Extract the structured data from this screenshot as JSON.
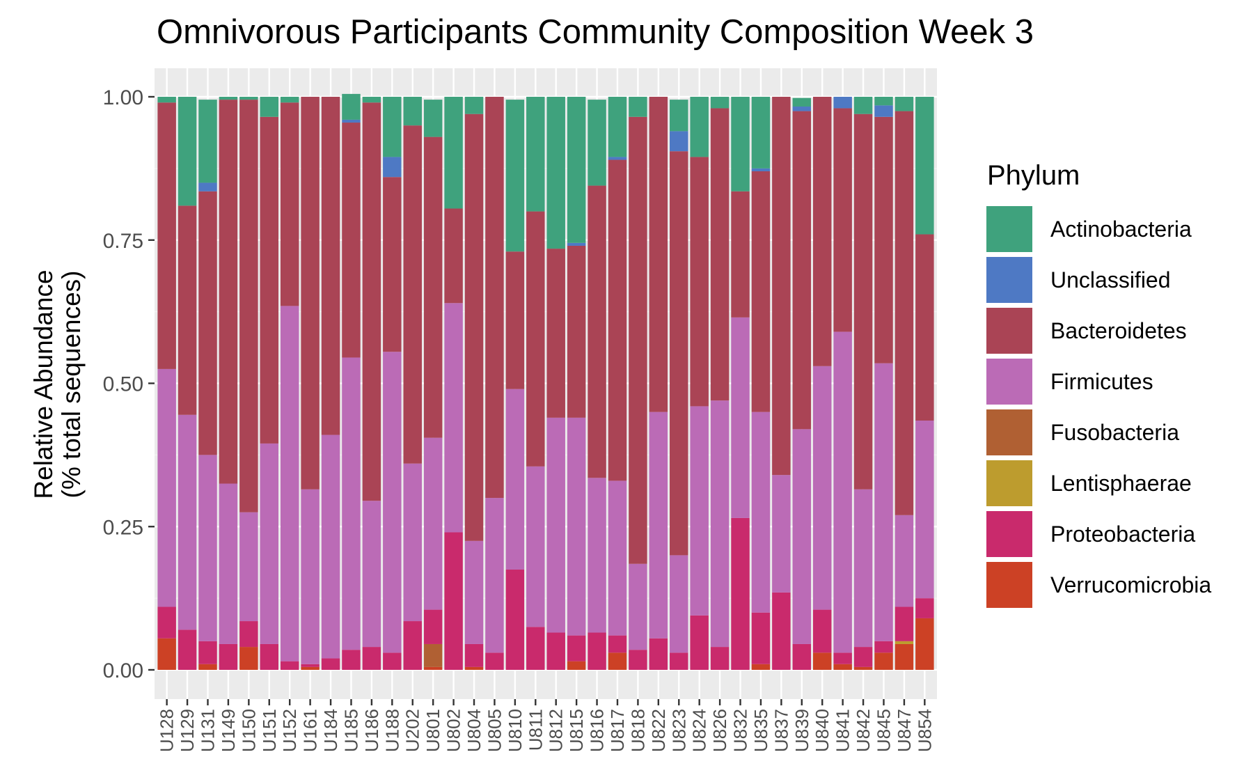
{
  "chart_data": {
    "type": "stacked_bar",
    "title": "Omnivorous Participants Community Composition Week 3",
    "xlabel": "",
    "ylabel_lines": [
      "Relative Abundance",
      "(% total sequences)"
    ],
    "ylim": [
      0,
      1
    ],
    "yticks": [
      "0.00",
      "0.25",
      "0.50",
      "0.75",
      "1.00"
    ],
    "grid": true,
    "legend": {
      "title": "Phylum",
      "placement": "right"
    },
    "categories": [
      "U128",
      "U129",
      "U131",
      "U149",
      "U150",
      "U151",
      "U152",
      "U161",
      "U184",
      "U185",
      "U186",
      "U188",
      "U202",
      "U801",
      "U802",
      "U804",
      "U805",
      "U810",
      "U811",
      "U812",
      "U815",
      "U816",
      "U817",
      "U818",
      "U822",
      "U823",
      "U824",
      "U826",
      "U832",
      "U835",
      "U837",
      "U839",
      "U840",
      "U841",
      "U842",
      "U845",
      "U847",
      "U854"
    ],
    "stack_order_bottom_to_top": [
      "Verrucomicrobia",
      "Lentisphaerae",
      "Fusobacteria",
      "Proteobacteria",
      "Firmicutes",
      "Bacteroidetes",
      "Unclassified",
      "Actinobacteria"
    ],
    "series": [
      {
        "name": "Actinobacteria",
        "color": "#3fa27d",
        "values": [
          0.01,
          0.19,
          0.145,
          0.005,
          0.005,
          0.035,
          0.01,
          0.0,
          0.0,
          0.045,
          0.01,
          0.105,
          0.05,
          0.065,
          0.195,
          0.03,
          0.0,
          0.265,
          0.2,
          0.265,
          0.255,
          0.15,
          0.105,
          0.035,
          0.0,
          0.055,
          0.105,
          0.02,
          0.165,
          0.125,
          0.0,
          0.015,
          0.0,
          0.0,
          0.03,
          0.015,
          0.025,
          0.24
        ]
      },
      {
        "name": "Unclassified",
        "color": "#4e79c4",
        "values": [
          0.0,
          0.0,
          0.015,
          0.0,
          0.0,
          0.0,
          0.0,
          0.0,
          0.0,
          0.005,
          0.0,
          0.035,
          0.0,
          0.0,
          0.0,
          0.0,
          0.0,
          0.0,
          0.0,
          0.0,
          0.005,
          0.0,
          0.005,
          0.0,
          0.0,
          0.035,
          0.0,
          0.0,
          0.0,
          0.005,
          0.0,
          0.008,
          0.0,
          0.02,
          0.0,
          0.02,
          0.0,
          0.0
        ]
      },
      {
        "name": "Bacteroidetes",
        "color": "#aa4455",
        "values": [
          0.465,
          0.365,
          0.46,
          0.67,
          0.72,
          0.57,
          0.355,
          0.685,
          0.59,
          0.41,
          0.695,
          0.305,
          0.59,
          0.525,
          0.165,
          0.745,
          0.7,
          0.24,
          0.445,
          0.295,
          0.3,
          0.51,
          0.56,
          0.78,
          0.55,
          0.705,
          0.435,
          0.51,
          0.22,
          0.42,
          0.66,
          0.555,
          0.47,
          0.39,
          0.655,
          0.43,
          0.705,
          0.325
        ]
      },
      {
        "name": "Firmicutes",
        "color": "#bb6bb6",
        "values": [
          0.415,
          0.375,
          0.325,
          0.28,
          0.19,
          0.35,
          0.62,
          0.305,
          0.39,
          0.51,
          0.255,
          0.525,
          0.275,
          0.3,
          0.4,
          0.18,
          0.27,
          0.315,
          0.28,
          0.375,
          0.38,
          0.27,
          0.27,
          0.15,
          0.395,
          0.17,
          0.365,
          0.43,
          0.35,
          0.35,
          0.205,
          0.375,
          0.425,
          0.56,
          0.275,
          0.485,
          0.16,
          0.31
        ]
      },
      {
        "name": "Fusobacteria",
        "color": "#b06033",
        "values": [
          0.0,
          0.0,
          0.0,
          0.0,
          0.0,
          0.0,
          0.0,
          0.0,
          0.0,
          0.0,
          0.0,
          0.0,
          0.0,
          0.04,
          0.0,
          0.0,
          0.0,
          0.0,
          0.0,
          0.0,
          0.0,
          0.0,
          0.0,
          0.0,
          0.0,
          0.0,
          0.0,
          0.0,
          0.0,
          0.0,
          0.0,
          0.0,
          0.0,
          0.0,
          0.0,
          0.0,
          0.0,
          0.0
        ]
      },
      {
        "name": "Lentisphaerae",
        "color": "#bd9c2e",
        "values": [
          0.0,
          0.0,
          0.0,
          0.0,
          0.0,
          0.0,
          0.0,
          0.0,
          0.0,
          0.0,
          0.0,
          0.0,
          0.0,
          0.0,
          0.0,
          0.0,
          0.0,
          0.0,
          0.0,
          0.0,
          0.0,
          0.0,
          0.0,
          0.0,
          0.0,
          0.0,
          0.0,
          0.0,
          0.0,
          0.0,
          0.0,
          0.0,
          0.0,
          0.0,
          0.0,
          0.0,
          0.005,
          0.0
        ]
      },
      {
        "name": "Proteobacteria",
        "color": "#c92a6c",
        "values": [
          0.055,
          0.07,
          0.04,
          0.045,
          0.045,
          0.045,
          0.015,
          0.005,
          0.02,
          0.035,
          0.04,
          0.03,
          0.085,
          0.06,
          0.24,
          0.04,
          0.03,
          0.175,
          0.075,
          0.065,
          0.045,
          0.065,
          0.03,
          0.035,
          0.055,
          0.03,
          0.095,
          0.04,
          0.265,
          0.09,
          0.135,
          0.045,
          0.075,
          0.02,
          0.035,
          0.02,
          0.06,
          0.035
        ]
      },
      {
        "name": "Verrucomicrobia",
        "color": "#cc4125",
        "values": [
          0.055,
          0.0,
          0.01,
          0.0,
          0.04,
          0.0,
          0.0,
          0.005,
          0.0,
          0.0,
          0.0,
          0.0,
          0.0,
          0.005,
          0.0,
          0.005,
          0.0,
          0.0,
          0.0,
          0.0,
          0.015,
          0.0,
          0.03,
          0.0,
          0.0,
          0.0,
          0.0,
          0.0,
          0.0,
          0.01,
          0.0,
          0.0,
          0.03,
          0.01,
          0.005,
          0.03,
          0.045,
          0.09
        ]
      }
    ]
  }
}
